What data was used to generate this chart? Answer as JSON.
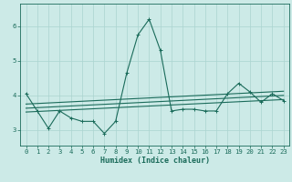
{
  "xlabel": "Humidex (Indice chaleur)",
  "xlim": [
    -0.5,
    23.5
  ],
  "ylim": [
    2.55,
    6.65
  ],
  "yticks": [
    3,
    4,
    5,
    6
  ],
  "xticks": [
    0,
    1,
    2,
    3,
    4,
    5,
    6,
    7,
    8,
    9,
    10,
    11,
    12,
    13,
    14,
    15,
    16,
    17,
    18,
    19,
    20,
    21,
    22,
    23
  ],
  "bg_color": "#cceae7",
  "grid_color": "#aad4d0",
  "line_color": "#1a6b5a",
  "main_line": {
    "x": [
      0,
      1,
      2,
      3,
      4,
      5,
      6,
      7,
      8,
      9,
      10,
      11,
      12,
      13,
      14,
      15,
      16,
      17,
      18,
      19,
      20,
      21,
      22,
      23
    ],
    "y": [
      4.05,
      3.55,
      3.05,
      3.55,
      3.35,
      3.25,
      3.25,
      2.9,
      3.25,
      4.65,
      5.75,
      6.2,
      5.3,
      3.55,
      3.6,
      3.6,
      3.55,
      3.55,
      4.05,
      4.35,
      4.1,
      3.8,
      4.05,
      3.85
    ]
  },
  "trend_lines": [
    {
      "x": [
        0,
        23
      ],
      "y": [
        3.52,
        3.88
      ]
    },
    {
      "x": [
        0,
        23
      ],
      "y": [
        3.63,
        4.0
      ]
    },
    {
      "x": [
        0,
        23
      ],
      "y": [
        3.75,
        4.12
      ]
    }
  ],
  "xlabel_fontsize": 6.0,
  "tick_fontsize": 5.2,
  "linewidth": 0.8,
  "marker_size": 3.0
}
